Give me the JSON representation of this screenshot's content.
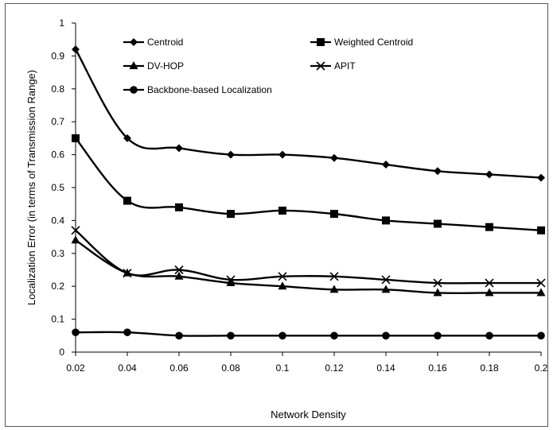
{
  "chart_data": {
    "type": "line",
    "title": "",
    "xlabel": "Network Density",
    "ylabel": "Localization Error (in terms of Transmission Range)",
    "x": [
      0.02,
      0.04,
      0.06,
      0.08,
      0.1,
      0.12,
      0.14,
      0.16,
      0.18,
      0.2
    ],
    "x_tick_labels": [
      "0.02",
      "0.04",
      "0.06",
      "0.08",
      "0.1",
      "0.12",
      "0.14",
      "0.16",
      "0.18",
      "0.2"
    ],
    "xlim": [
      0.02,
      0.2
    ],
    "y_tick_labels": [
      "0",
      "0.1",
      "0.2",
      "0.3",
      "0.4",
      "0.5",
      "0.6",
      "0.7",
      "0.8",
      "0.9",
      "1"
    ],
    "ylim": [
      0,
      1
    ],
    "grid": false,
    "legend_position": "top, inside plot area",
    "series": [
      {
        "name": "Centroid",
        "marker": "diamond",
        "values": [
          0.92,
          0.65,
          0.62,
          0.6,
          0.6,
          0.59,
          0.57,
          0.55,
          0.54,
          0.53
        ]
      },
      {
        "name": "Weighted Centroid",
        "marker": "square",
        "values": [
          0.65,
          0.46,
          0.44,
          0.42,
          0.43,
          0.42,
          0.4,
          0.39,
          0.38,
          0.37
        ]
      },
      {
        "name": "DV-HOP",
        "marker": "triangle",
        "values": [
          0.34,
          0.24,
          0.23,
          0.21,
          0.2,
          0.19,
          0.19,
          0.18,
          0.18,
          0.18
        ]
      },
      {
        "name": "APIT",
        "marker": "x",
        "values": [
          0.37,
          0.24,
          0.25,
          0.22,
          0.23,
          0.23,
          0.22,
          0.21,
          0.21,
          0.21
        ]
      },
      {
        "name": "Backbone-based Localization",
        "marker": "circle",
        "values": [
          0.06,
          0.06,
          0.05,
          0.05,
          0.05,
          0.05,
          0.05,
          0.05,
          0.05,
          0.05
        ]
      }
    ]
  }
}
